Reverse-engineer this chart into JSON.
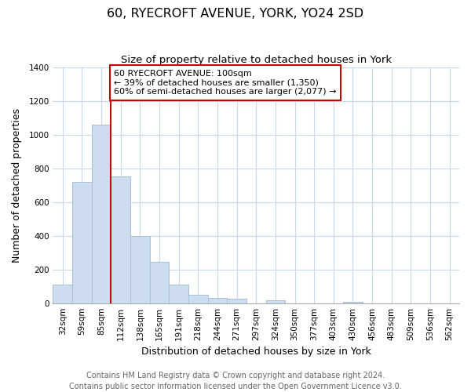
{
  "title": "60, RYECROFT AVENUE, YORK, YO24 2SD",
  "subtitle": "Size of property relative to detached houses in York",
  "xlabel": "Distribution of detached houses by size in York",
  "ylabel": "Number of detached properties",
  "bar_values": [
    108,
    720,
    1060,
    750,
    400,
    245,
    110,
    48,
    30,
    28,
    0,
    15,
    0,
    0,
    0,
    10,
    0,
    0,
    0,
    0,
    0
  ],
  "bar_labels": [
    "32sqm",
    "59sqm",
    "85sqm",
    "112sqm",
    "138sqm",
    "165sqm",
    "191sqm",
    "218sqm",
    "244sqm",
    "271sqm",
    "297sqm",
    "324sqm",
    "350sqm",
    "377sqm",
    "403sqm",
    "430sqm",
    "456sqm",
    "483sqm",
    "509sqm",
    "536sqm",
    "562sqm"
  ],
  "bar_color": "#cddcee",
  "bar_edge_color": "#a8c0d8",
  "ylim": [
    0,
    1400
  ],
  "yticks": [
    0,
    200,
    400,
    600,
    800,
    1000,
    1200,
    1400
  ],
  "property_line_x": 3,
  "property_line_color": "#cc0000",
  "annotation_box_text": "60 RYECROFT AVENUE: 100sqm\n← 39% of detached houses are smaller (1,350)\n60% of semi-detached houses are larger (2,077) →",
  "annotation_box_color": "#ffffff",
  "annotation_box_edge_color": "#cc0000",
  "footer_line1": "Contains HM Land Registry data © Crown copyright and database right 2024.",
  "footer_line2": "Contains public sector information licensed under the Open Government Licence v3.0.",
  "background_color": "#ffffff",
  "grid_color": "#c8d8e8",
  "title_fontsize": 11.5,
  "subtitle_fontsize": 9.5,
  "axis_label_fontsize": 9,
  "tick_fontsize": 7.5,
  "footer_fontsize": 7
}
